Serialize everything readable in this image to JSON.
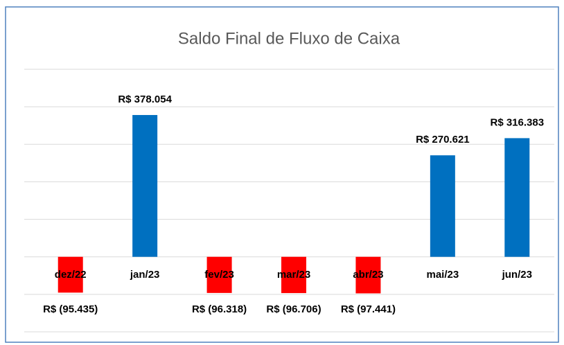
{
  "chart_data": {
    "type": "bar",
    "title": "Saldo Final de Fluxo de Caixa",
    "categories": [
      "dez/22",
      "jan/23",
      "fev/23",
      "mar/23",
      "abr/23",
      "mai/23",
      "jun/23"
    ],
    "values": [
      -95435,
      378054,
      -96318,
      -96706,
      -97441,
      270621,
      316383
    ],
    "value_labels": [
      "R$ (95.435)",
      "R$ 378.054",
      "R$ (96.318)",
      "R$ (96.706)",
      "R$ (97.441)",
      "R$ 270.621",
      "R$ 316.383"
    ],
    "color": "#0070c0",
    "negative_color": "#ff0000",
    "ylim": [
      -200000,
      500000
    ],
    "yticks": [
      -200000,
      -100000,
      0,
      100000,
      200000,
      300000,
      400000,
      500000
    ],
    "grid": true
  }
}
